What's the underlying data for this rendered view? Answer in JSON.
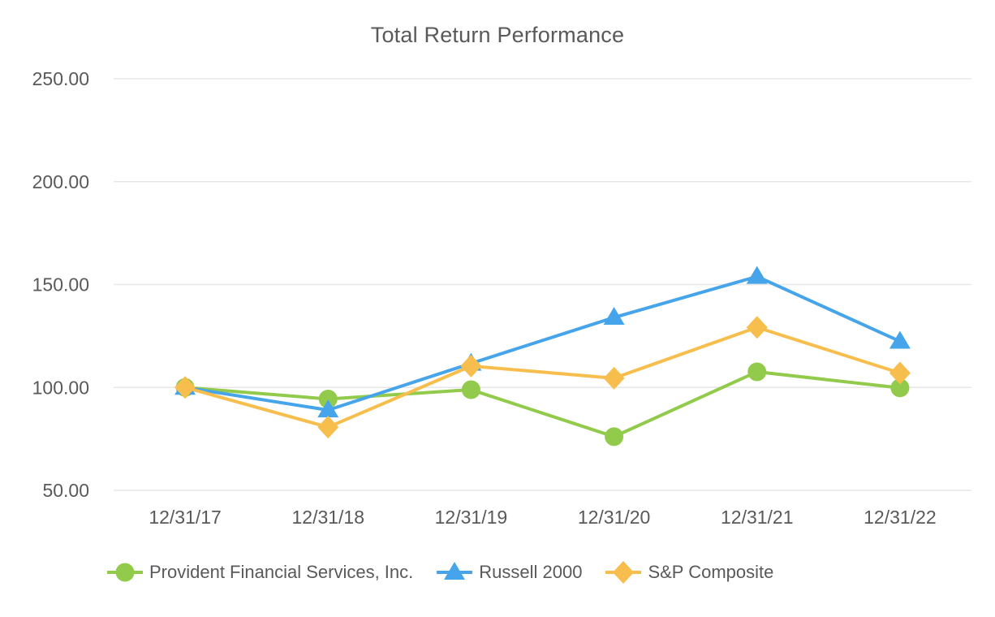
{
  "page_title": "Total Return Performance",
  "chart_data": {
    "type": "line",
    "title": "Total Return Performance",
    "categories": [
      "12/31/17",
      "12/31/18",
      "12/31/19",
      "12/31/20",
      "12/31/21",
      "12/31/22"
    ],
    "series": [
      {
        "name": "Provident Financial Services, Inc.",
        "marker": "circle",
        "color": "#92CB4B",
        "values": [
          100.0,
          94.4,
          98.9,
          76.1,
          107.6,
          99.8
        ]
      },
      {
        "name": "Russell 2000",
        "marker": "triangle",
        "color": "#46A5EA",
        "values": [
          100.0,
          89.0,
          111.7,
          134.0,
          153.9,
          122.4
        ]
      },
      {
        "name": "S&P Composite",
        "marker": "diamond",
        "color": "#F7BE4D",
        "values": [
          100.0,
          80.7,
          110.4,
          104.5,
          129.2,
          107.0
        ]
      }
    ],
    "xlabel": "",
    "ylabel": "",
    "ylim": [
      50,
      250
    ],
    "y_ticks": [
      "50.00",
      "100.00",
      "150.00",
      "200.00",
      "250.00"
    ],
    "y_tick_values": [
      50,
      100,
      150,
      200,
      250
    ],
    "grid": true,
    "legend_position": "bottom",
    "text_color": "#595959",
    "gridline_color": "#E7E7E7",
    "background_color": "#FFFFFF"
  }
}
